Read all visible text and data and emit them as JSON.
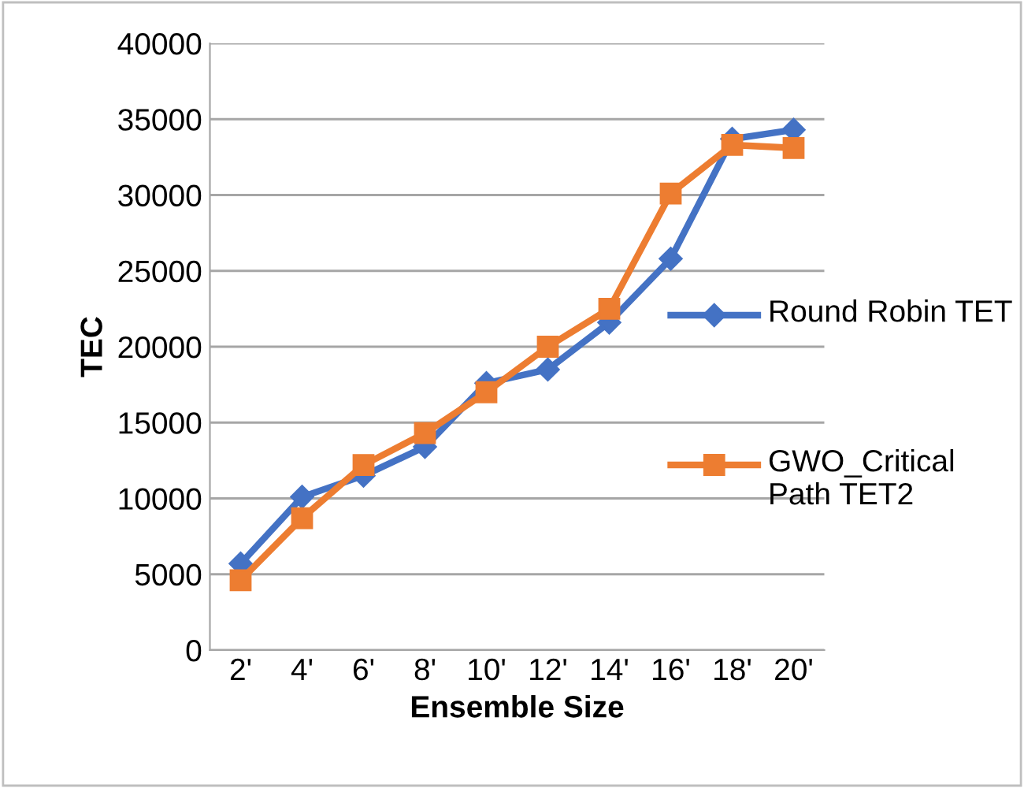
{
  "chart_data": {
    "type": "line",
    "xlabel": "Ensemble Size",
    "ylabel": "TEC",
    "categories": [
      "2'",
      "4'",
      "6'",
      "8'",
      "10'",
      "12'",
      "14'",
      "16'",
      "18'",
      "20'"
    ],
    "series": [
      {
        "name": "Round Robin TET",
        "color": "#4472c4",
        "marker": "diamond",
        "values": [
          5700,
          10100,
          11500,
          13400,
          17600,
          18500,
          21600,
          25800,
          33700,
          34300
        ]
      },
      {
        "name": "GWO_Critical Path TET2",
        "color": "#ed7d31",
        "marker": "square",
        "values": [
          4600,
          8700,
          12200,
          14300,
          17000,
          20000,
          22500,
          30100,
          33300,
          33100
        ]
      }
    ],
    "ylim": [
      0,
      40000
    ],
    "yticks": [
      0,
      5000,
      10000,
      15000,
      20000,
      25000,
      30000,
      35000,
      40000
    ],
    "grid": "y",
    "legend": "right",
    "line_style": "solid"
  }
}
